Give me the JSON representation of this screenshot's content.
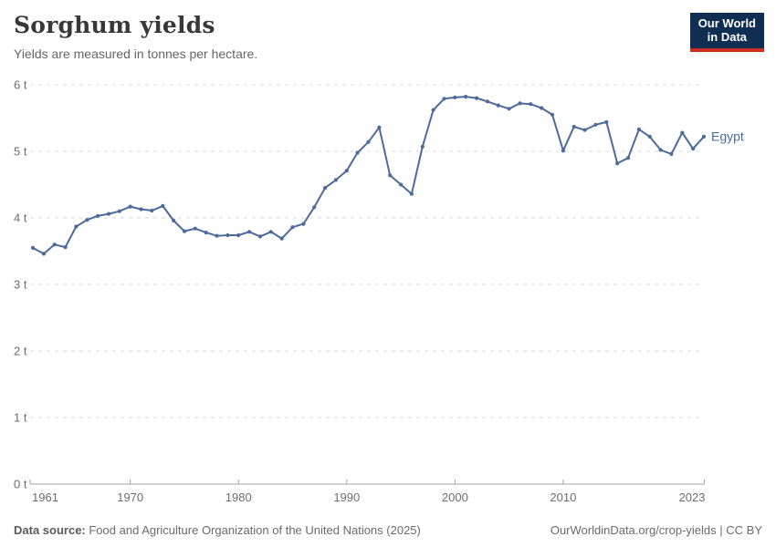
{
  "header": {
    "title": "Sorghum yields",
    "subtitle": "Yields are measured in tonnes per hectare."
  },
  "logo": {
    "line1": "Our World",
    "line2": "in Data"
  },
  "footer": {
    "source_label": "Data source:",
    "source_text": " Food and Agriculture Organization of the United Nations (2025)",
    "credit": "OurWorldinData.org/crop-yields | CC BY"
  },
  "colors": {
    "line": "#4C6A9C",
    "grid": "#d8d8d8",
    "axis": "#a3a3a3",
    "tick_label": "#6e6e6e",
    "title": "#383838",
    "subtitle": "#666666",
    "footer_text": "#6b6b6b",
    "logo_bg": "#0f2e52",
    "logo_red": "#cf2e23"
  },
  "chart_data": {
    "type": "line",
    "title": "Sorghum yields",
    "subtitle": "Yields are measured in tonnes per hectare.",
    "unit": "t",
    "xlabel": "",
    "ylabel": "tonnes per hectare",
    "xlim": [
      1961,
      2023
    ],
    "ylim": [
      0,
      6
    ],
    "x_ticks": [
      1961,
      1970,
      1980,
      1990,
      2000,
      2010,
      2023
    ],
    "y_ticks": [
      0,
      1,
      2,
      3,
      4,
      5,
      6
    ],
    "grid": "horizontal-dashed",
    "legend_position": "end-of-line-label",
    "x": [
      1961,
      1962,
      1963,
      1964,
      1965,
      1966,
      1967,
      1968,
      1969,
      1970,
      1971,
      1972,
      1973,
      1974,
      1975,
      1976,
      1977,
      1978,
      1979,
      1980,
      1981,
      1982,
      1983,
      1984,
      1985,
      1986,
      1987,
      1988,
      1989,
      1990,
      1991,
      1992,
      1993,
      1994,
      1995,
      1996,
      1997,
      1998,
      1999,
      2000,
      2001,
      2002,
      2003,
      2004,
      2005,
      2006,
      2007,
      2008,
      2009,
      2010,
      2011,
      2012,
      2013,
      2014,
      2015,
      2016,
      2017,
      2018,
      2019,
      2020,
      2021,
      2022,
      2023
    ],
    "series": [
      {
        "name": "Egypt",
        "color": "#4C6A9C",
        "values": [
          3.55,
          3.46,
          3.6,
          3.56,
          3.87,
          3.97,
          4.03,
          4.06,
          4.1,
          4.17,
          4.13,
          4.11,
          4.18,
          3.96,
          3.8,
          3.84,
          3.78,
          3.73,
          3.74,
          3.74,
          3.79,
          3.72,
          3.79,
          3.69,
          3.86,
          3.91,
          4.16,
          4.45,
          4.57,
          4.71,
          4.98,
          5.14,
          5.36,
          4.64,
          4.5,
          4.36,
          5.07,
          5.62,
          5.79,
          5.81,
          5.82,
          5.8,
          5.75,
          5.69,
          5.64,
          5.72,
          5.71,
          5.65,
          5.55,
          5.01,
          5.37,
          5.32,
          5.4,
          5.44,
          4.82,
          4.9,
          5.33,
          5.22,
          5.02,
          4.96,
          5.28,
          5.04,
          5.22
        ]
      }
    ]
  }
}
